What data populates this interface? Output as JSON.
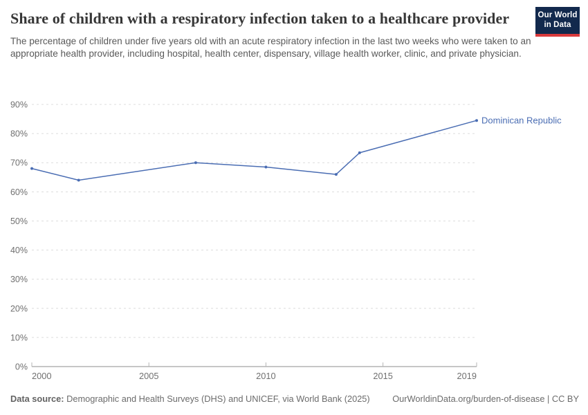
{
  "header": {
    "title": "Share of children with a respiratory infection taken to a healthcare provider",
    "subtitle": "The percentage of children under five years old with an acute respiratory infection in the last two weeks who were taken to an appropriate health provider, including hospital, health center, dispensary, village health worker, clinic, and private physician."
  },
  "logo": {
    "line1": "Our World",
    "line2": "in Data",
    "bg_color": "#12294d",
    "bar_color": "#d93a3c"
  },
  "chart_data": {
    "type": "line",
    "title": "Share of children with a respiratory infection taken to a healthcare provider",
    "xlabel": "",
    "ylabel": "",
    "xlim": [
      2000,
      2019
    ],
    "ylim": [
      0,
      90
    ],
    "xticks": [
      2000,
      2005,
      2010,
      2015,
      2019
    ],
    "yticks": [
      0,
      10,
      20,
      30,
      40,
      50,
      60,
      70,
      80,
      90
    ],
    "ytick_suffix": "%",
    "grid": "horizontal-dashed",
    "legend_position": "end-of-line-label",
    "series": [
      {
        "name": "Dominican Republic",
        "color": "#4a6db3",
        "points": [
          {
            "x": 2000,
            "y": 68
          },
          {
            "x": 2002,
            "y": 64
          },
          {
            "x": 2007,
            "y": 70
          },
          {
            "x": 2010,
            "y": 68.5
          },
          {
            "x": 2013,
            "y": 66
          },
          {
            "x": 2014,
            "y": 73.4
          },
          {
            "x": 2019,
            "y": 84.5
          }
        ]
      }
    ],
    "style": {
      "gridline_color": "#dcdcdc",
      "axis_color": "#8c8c8c",
      "tick_color": "#b5b5b5",
      "tick_label_color": "#707070"
    }
  },
  "footer": {
    "data_source_label": "Data source:",
    "data_source_text": "Demographic and Health Surveys (DHS) and UNICEF, via World Bank (2025)",
    "credit": "OurWorldinData.org/burden-of-disease | CC BY"
  }
}
